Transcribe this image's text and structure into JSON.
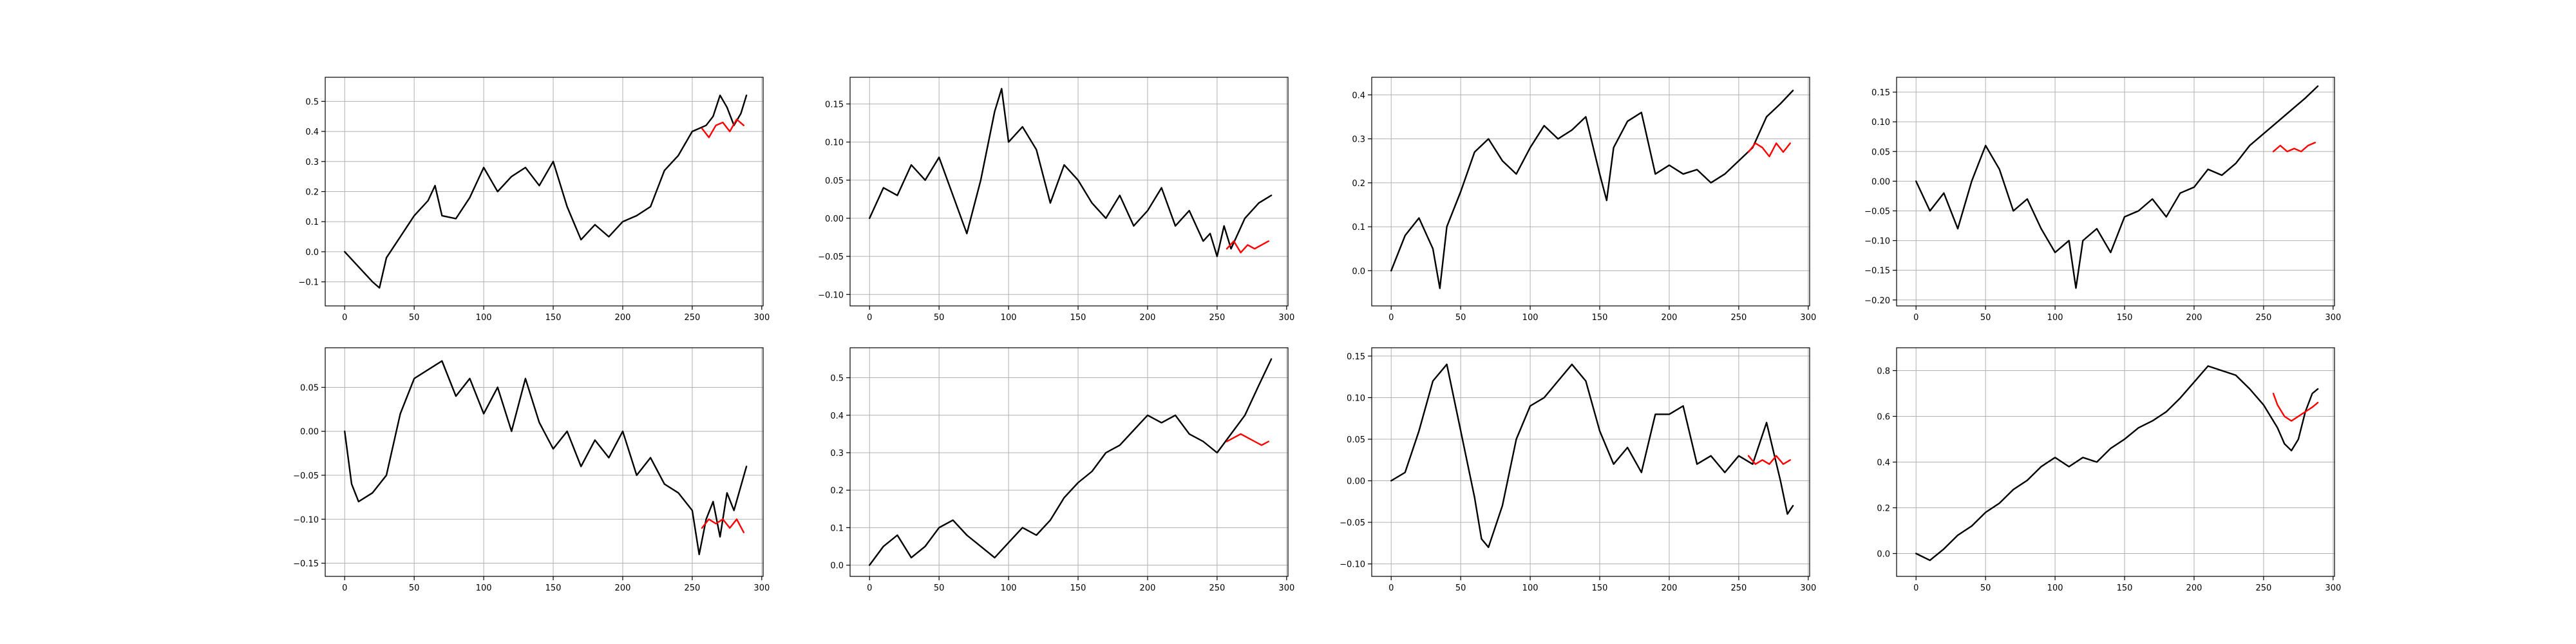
{
  "figure": {
    "background": "#ffffff",
    "grid": true,
    "actual_color": "#000000",
    "forecast_color": "#ff0000"
  },
  "chart_data": [
    {
      "type": "line",
      "title": "",
      "xlabel": "",
      "ylabel": "",
      "xlim": [
        -14,
        301
      ],
      "ylim": [
        -0.18,
        0.58
      ],
      "xticks": [
        0,
        50,
        100,
        150,
        200,
        250,
        300
      ],
      "yticks": [
        -0.1,
        0.0,
        0.1,
        0.2,
        0.3,
        0.4,
        0.5
      ],
      "xtick_labels": [
        "0",
        "50",
        "100",
        "150",
        "200",
        "250",
        "300"
      ],
      "ytick_labels": [
        "−0.1",
        "0.0",
        "0.1",
        "0.2",
        "0.3",
        "0.4",
        "0.5"
      ],
      "series": [
        {
          "color": "#000000",
          "x": [
            0,
            10,
            20,
            25,
            30,
            40,
            50,
            60,
            65,
            70,
            80,
            90,
            100,
            110,
            120,
            130,
            140,
            150,
            160,
            170,
            180,
            190,
            200,
            210,
            220,
            230,
            240,
            250,
            260,
            265,
            270,
            275,
            280,
            285,
            289
          ],
          "y": [
            0.0,
            -0.05,
            -0.1,
            -0.12,
            -0.02,
            0.05,
            0.12,
            0.17,
            0.22,
            0.12,
            0.11,
            0.18,
            0.28,
            0.2,
            0.25,
            0.28,
            0.22,
            0.3,
            0.15,
            0.04,
            0.09,
            0.05,
            0.1,
            0.12,
            0.15,
            0.27,
            0.32,
            0.4,
            0.42,
            0.45,
            0.52,
            0.48,
            0.42,
            0.46,
            0.52
          ]
        },
        {
          "color": "#ff0000",
          "x": [
            257,
            262,
            267,
            272,
            277,
            282,
            287
          ],
          "y": [
            0.41,
            0.38,
            0.42,
            0.43,
            0.4,
            0.44,
            0.42
          ]
        }
      ]
    },
    {
      "type": "line",
      "title": "",
      "xlabel": "",
      "ylabel": "",
      "xlim": [
        -14,
        301
      ],
      "ylim": [
        -0.115,
        0.185
      ],
      "xticks": [
        0,
        50,
        100,
        150,
        200,
        250,
        300
      ],
      "yticks": [
        -0.1,
        -0.05,
        0.0,
        0.05,
        0.1,
        0.15
      ],
      "xtick_labels": [
        "0",
        "50",
        "100",
        "150",
        "200",
        "250",
        "300"
      ],
      "ytick_labels": [
        "−0.10",
        "−0.05",
        "0.00",
        "0.05",
        "0.10",
        "0.15"
      ],
      "series": [
        {
          "color": "#000000",
          "x": [
            0,
            10,
            20,
            30,
            40,
            50,
            60,
            70,
            80,
            90,
            95,
            100,
            110,
            120,
            130,
            140,
            150,
            160,
            170,
            180,
            190,
            200,
            210,
            220,
            230,
            240,
            245,
            250,
            255,
            260,
            270,
            280,
            289
          ],
          "y": [
            0.0,
            0.04,
            0.03,
            0.07,
            0.05,
            0.08,
            0.03,
            -0.02,
            0.05,
            0.14,
            0.17,
            0.1,
            0.12,
            0.09,
            0.02,
            0.07,
            0.05,
            0.02,
            0.0,
            0.03,
            -0.01,
            0.01,
            0.04,
            -0.01,
            0.01,
            -0.03,
            -0.02,
            -0.05,
            -0.01,
            -0.04,
            0.0,
            0.02,
            0.03
          ]
        },
        {
          "color": "#ff0000",
          "x": [
            257,
            262,
            267,
            272,
            277,
            282,
            287
          ],
          "y": [
            -0.04,
            -0.03,
            -0.045,
            -0.035,
            -0.04,
            -0.035,
            -0.03
          ]
        }
      ]
    },
    {
      "type": "line",
      "title": "",
      "xlabel": "",
      "ylabel": "",
      "xlim": [
        -14,
        301
      ],
      "ylim": [
        -0.08,
        0.44
      ],
      "xticks": [
        0,
        50,
        100,
        150,
        200,
        250,
        300
      ],
      "yticks": [
        0.0,
        0.1,
        0.2,
        0.3,
        0.4
      ],
      "xtick_labels": [
        "0",
        "50",
        "100",
        "150",
        "200",
        "250",
        "300"
      ],
      "ytick_labels": [
        "0.0",
        "0.1",
        "0.2",
        "0.3",
        "0.4"
      ],
      "series": [
        {
          "color": "#000000",
          "x": [
            0,
            10,
            20,
            30,
            35,
            40,
            50,
            60,
            70,
            80,
            90,
            100,
            110,
            120,
            130,
            140,
            150,
            155,
            160,
            170,
            180,
            190,
            200,
            210,
            220,
            230,
            240,
            250,
            260,
            270,
            280,
            289
          ],
          "y": [
            0.0,
            0.08,
            0.12,
            0.05,
            -0.04,
            0.1,
            0.18,
            0.27,
            0.3,
            0.25,
            0.22,
            0.28,
            0.33,
            0.3,
            0.32,
            0.35,
            0.22,
            0.16,
            0.28,
            0.34,
            0.36,
            0.22,
            0.24,
            0.22,
            0.23,
            0.2,
            0.22,
            0.25,
            0.28,
            0.35,
            0.38,
            0.41
          ]
        },
        {
          "color": "#ff0000",
          "x": [
            257,
            262,
            267,
            272,
            277,
            282,
            287
          ],
          "y": [
            0.27,
            0.29,
            0.28,
            0.26,
            0.29,
            0.27,
            0.29
          ]
        }
      ]
    },
    {
      "type": "line",
      "title": "",
      "xlabel": "",
      "ylabel": "",
      "xlim": [
        -14,
        301
      ],
      "ylim": [
        -0.21,
        0.175
      ],
      "xticks": [
        0,
        50,
        100,
        150,
        200,
        250,
        300
      ],
      "yticks": [
        -0.2,
        -0.15,
        -0.1,
        -0.05,
        0.0,
        0.05,
        0.1,
        0.15
      ],
      "xtick_labels": [
        "0",
        "50",
        "100",
        "150",
        "200",
        "250",
        "300"
      ],
      "ytick_labels": [
        "−0.20",
        "−0.15",
        "−0.10",
        "−0.05",
        "0.00",
        "0.05",
        "0.10",
        "0.15"
      ],
      "series": [
        {
          "color": "#000000",
          "x": [
            0,
            10,
            20,
            30,
            40,
            50,
            60,
            70,
            80,
            90,
            100,
            110,
            115,
            120,
            130,
            140,
            150,
            160,
            170,
            180,
            190,
            200,
            210,
            220,
            230,
            240,
            250,
            260,
            270,
            280,
            289
          ],
          "y": [
            0.0,
            -0.05,
            -0.02,
            -0.08,
            0.0,
            0.06,
            0.02,
            -0.05,
            -0.03,
            -0.08,
            -0.12,
            -0.1,
            -0.18,
            -0.1,
            -0.08,
            -0.12,
            -0.06,
            -0.05,
            -0.03,
            -0.06,
            -0.02,
            -0.01,
            0.02,
            0.01,
            0.03,
            0.06,
            0.08,
            0.1,
            0.12,
            0.14,
            0.16
          ]
        },
        {
          "color": "#ff0000",
          "x": [
            257,
            262,
            267,
            272,
            277,
            282,
            287
          ],
          "y": [
            0.05,
            0.06,
            0.05,
            0.055,
            0.05,
            0.06,
            0.065
          ]
        }
      ]
    },
    {
      "type": "line",
      "title": "",
      "xlabel": "",
      "ylabel": "",
      "xlim": [
        -14,
        301
      ],
      "ylim": [
        -0.165,
        0.095
      ],
      "xticks": [
        0,
        50,
        100,
        150,
        200,
        250,
        300
      ],
      "yticks": [
        -0.15,
        -0.1,
        -0.05,
        0.0,
        0.05
      ],
      "xtick_labels": [
        "0",
        "50",
        "100",
        "150",
        "200",
        "250",
        "300"
      ],
      "ytick_labels": [
        "−0.15",
        "−0.10",
        "−0.05",
        "0.00",
        "0.05"
      ],
      "series": [
        {
          "color": "#000000",
          "x": [
            0,
            5,
            10,
            20,
            30,
            40,
            50,
            60,
            70,
            80,
            90,
            100,
            110,
            120,
            130,
            140,
            150,
            160,
            170,
            180,
            190,
            200,
            210,
            220,
            230,
            240,
            250,
            255,
            260,
            265,
            270,
            275,
            280,
            289
          ],
          "y": [
            0.0,
            -0.06,
            -0.08,
            -0.07,
            -0.05,
            0.02,
            0.06,
            0.07,
            0.08,
            0.04,
            0.06,
            0.02,
            0.05,
            0.0,
            0.06,
            0.01,
            -0.02,
            0.0,
            -0.04,
            -0.01,
            -0.03,
            0.0,
            -0.05,
            -0.03,
            -0.06,
            -0.07,
            -0.09,
            -0.14,
            -0.1,
            -0.08,
            -0.12,
            -0.07,
            -0.09,
            -0.04
          ]
        },
        {
          "color": "#ff0000",
          "x": [
            257,
            262,
            267,
            272,
            277,
            282,
            287
          ],
          "y": [
            -0.11,
            -0.1,
            -0.105,
            -0.1,
            -0.11,
            -0.1,
            -0.115
          ]
        }
      ]
    },
    {
      "type": "line",
      "title": "",
      "xlabel": "",
      "ylabel": "",
      "xlim": [
        -14,
        301
      ],
      "ylim": [
        -0.03,
        0.58
      ],
      "xticks": [
        0,
        50,
        100,
        150,
        200,
        250,
        300
      ],
      "yticks": [
        0.0,
        0.1,
        0.2,
        0.3,
        0.4,
        0.5
      ],
      "xtick_labels": [
        "0",
        "50",
        "100",
        "150",
        "200",
        "250",
        "300"
      ],
      "ytick_labels": [
        "0.0",
        "0.1",
        "0.2",
        "0.3",
        "0.4",
        "0.5"
      ],
      "series": [
        {
          "color": "#000000",
          "x": [
            0,
            10,
            20,
            30,
            40,
            50,
            60,
            70,
            80,
            90,
            100,
            110,
            120,
            130,
            140,
            150,
            160,
            170,
            180,
            190,
            200,
            210,
            220,
            230,
            240,
            250,
            260,
            270,
            280,
            289
          ],
          "y": [
            0.0,
            0.05,
            0.08,
            0.02,
            0.05,
            0.1,
            0.12,
            0.08,
            0.05,
            0.02,
            0.06,
            0.1,
            0.08,
            0.12,
            0.18,
            0.22,
            0.25,
            0.3,
            0.32,
            0.36,
            0.4,
            0.38,
            0.4,
            0.35,
            0.33,
            0.3,
            0.35,
            0.4,
            0.48,
            0.55
          ]
        },
        {
          "color": "#ff0000",
          "x": [
            257,
            262,
            267,
            272,
            277,
            282,
            287
          ],
          "y": [
            0.33,
            0.34,
            0.35,
            0.34,
            0.33,
            0.32,
            0.33
          ]
        }
      ]
    },
    {
      "type": "line",
      "title": "",
      "xlabel": "",
      "ylabel": "",
      "xlim": [
        -14,
        301
      ],
      "ylim": [
        -0.115,
        0.16
      ],
      "xticks": [
        0,
        50,
        100,
        150,
        200,
        250,
        300
      ],
      "yticks": [
        -0.1,
        -0.05,
        0.0,
        0.05,
        0.1,
        0.15
      ],
      "xtick_labels": [
        "0",
        "50",
        "100",
        "150",
        "200",
        "250",
        "300"
      ],
      "ytick_labels": [
        "−0.10",
        "−0.05",
        "0.00",
        "0.05",
        "0.10",
        "0.15"
      ],
      "series": [
        {
          "color": "#000000",
          "x": [
            0,
            10,
            20,
            30,
            40,
            50,
            60,
            65,
            70,
            80,
            90,
            100,
            110,
            120,
            130,
            140,
            150,
            160,
            170,
            180,
            190,
            200,
            210,
            220,
            230,
            240,
            250,
            260,
            270,
            280,
            285,
            289
          ],
          "y": [
            0.0,
            0.01,
            0.06,
            0.12,
            0.14,
            0.06,
            -0.02,
            -0.07,
            -0.08,
            -0.03,
            0.05,
            0.09,
            0.1,
            0.12,
            0.14,
            0.12,
            0.06,
            0.02,
            0.04,
            0.01,
            0.08,
            0.08,
            0.09,
            0.02,
            0.03,
            0.01,
            0.03,
            0.02,
            0.07,
            0.0,
            -0.04,
            -0.03
          ]
        },
        {
          "color": "#ff0000",
          "x": [
            257,
            262,
            267,
            272,
            277,
            282,
            287
          ],
          "y": [
            0.03,
            0.02,
            0.025,
            0.02,
            0.03,
            0.02,
            0.025
          ]
        }
      ]
    },
    {
      "type": "line",
      "title": "",
      "xlabel": "",
      "ylabel": "",
      "xlim": [
        -14,
        301
      ],
      "ylim": [
        -0.1,
        0.9
      ],
      "xticks": [
        0,
        50,
        100,
        150,
        200,
        250,
        300
      ],
      "yticks": [
        0.0,
        0.2,
        0.4,
        0.6,
        0.8
      ],
      "xtick_labels": [
        "0",
        "50",
        "100",
        "150",
        "200",
        "250",
        "300"
      ],
      "ytick_labels": [
        "0.0",
        "0.2",
        "0.4",
        "0.6",
        "0.8"
      ],
      "series": [
        {
          "color": "#000000",
          "x": [
            0,
            10,
            20,
            30,
            40,
            50,
            60,
            70,
            80,
            90,
            100,
            110,
            120,
            130,
            140,
            150,
            160,
            170,
            180,
            190,
            200,
            210,
            220,
            230,
            240,
            250,
            260,
            265,
            270,
            275,
            280,
            285,
            289
          ],
          "y": [
            0.0,
            -0.03,
            0.02,
            0.08,
            0.12,
            0.18,
            0.22,
            0.28,
            0.32,
            0.38,
            0.42,
            0.38,
            0.42,
            0.4,
            0.46,
            0.5,
            0.55,
            0.58,
            0.62,
            0.68,
            0.75,
            0.82,
            0.8,
            0.78,
            0.72,
            0.65,
            0.55,
            0.48,
            0.45,
            0.5,
            0.62,
            0.7,
            0.72
          ]
        },
        {
          "color": "#ff0000",
          "x": [
            257,
            260,
            265,
            270,
            275,
            280,
            285,
            289
          ],
          "y": [
            0.7,
            0.65,
            0.6,
            0.58,
            0.6,
            0.62,
            0.64,
            0.66
          ]
        }
      ]
    }
  ]
}
